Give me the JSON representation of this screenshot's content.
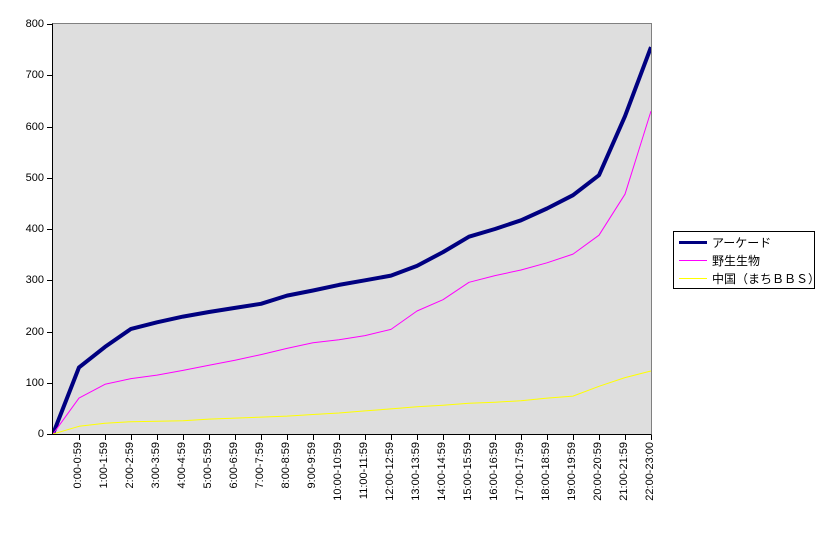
{
  "chart_data": {
    "type": "line",
    "title": "",
    "xlabel": "",
    "ylabel": "",
    "ylim": [
      0,
      800
    ],
    "y_ticks": [
      0,
      100,
      200,
      300,
      400,
      500,
      600,
      700,
      800
    ],
    "grid": false,
    "legend_position": "right",
    "plot_bg_color": "#DEDEDE",
    "plot_border_color": "#808080",
    "axis_color": "#000000",
    "note": "each series starts at 0 on the y-axis origin, then one point per hourly category",
    "categories": [
      "0:00-0:59",
      "1:00-1:59",
      "2:00-2:59",
      "3:00-3:59",
      "4:00-4:59",
      "5:00-5:59",
      "6:00-6:59",
      "7:00-7:59",
      "8:00-8:59",
      "9:00-9:59",
      "10:00-10:59",
      "11:00-11:59",
      "12:00-12:59",
      "13:00-13:59",
      "14:00-14:59",
      "15:00-15:59",
      "16:00-16:59",
      "17:00-17:59",
      "18:00-18:59",
      "19:00-19:59",
      "20:00-20:59",
      "21:00-21:59",
      "22:00-23:00"
    ],
    "series": [
      {
        "name": "アーケード",
        "color": "#000080",
        "line_width": 4,
        "values": [
          0,
          130,
          170,
          205,
          218,
          229,
          238,
          246,
          254,
          270,
          280,
          291,
          300,
          309,
          328,
          355,
          385,
          400,
          417,
          440,
          466,
          505,
          620,
          755
        ]
      },
      {
        "name": "野生生物",
        "color": "#FF00FF",
        "line_width": 1,
        "values": [
          0,
          70,
          97,
          108,
          115,
          124,
          134,
          144,
          155,
          167,
          178,
          184,
          192,
          204,
          240,
          262,
          296,
          309,
          320,
          334,
          351,
          388,
          468,
          630
        ]
      },
      {
        "name": "中国（まちＢＢＳ）",
        "color": "#FFFF00",
        "line_width": 1,
        "values": [
          0,
          15,
          21,
          24,
          25,
          26,
          29,
          31,
          33,
          35,
          38,
          41,
          45,
          49,
          53,
          56,
          60,
          62,
          65,
          70,
          74,
          93,
          110,
          123
        ]
      }
    ]
  }
}
